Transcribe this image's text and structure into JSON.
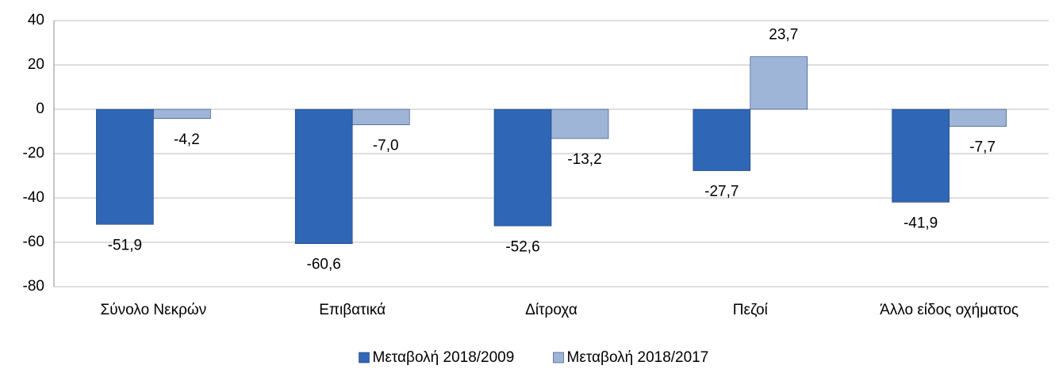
{
  "chart_data": {
    "type": "bar",
    "categories": [
      "Σύνολο Νεκρών",
      "Επιβατικά",
      "Δίτροχα",
      "Πεζοί",
      "Άλλο είδος οχήματος"
    ],
    "series": [
      {
        "name": "Μεταβολή 2018/2009",
        "color": "#2f66b5",
        "values": [
          -51.9,
          -60.6,
          -52.6,
          -27.7,
          -41.9
        ],
        "value_labels": [
          "-51,9",
          "-60,6",
          "-52,6",
          "-27,7",
          "-41,9"
        ]
      },
      {
        "name": "Μεταβολή 2018/2017",
        "color": "#9fb5d8",
        "values": [
          -4.2,
          -7.0,
          -13.2,
          23.7,
          -7.7
        ],
        "value_labels": [
          "-4,2",
          "-7,0",
          "-13,2",
          "23,7",
          "-7,7"
        ]
      }
    ],
    "ylim": [
      -80,
      40
    ],
    "yticks": [
      -80,
      -60,
      -40,
      -20,
      0,
      20,
      40
    ],
    "grid": true,
    "legend": "bottom"
  }
}
